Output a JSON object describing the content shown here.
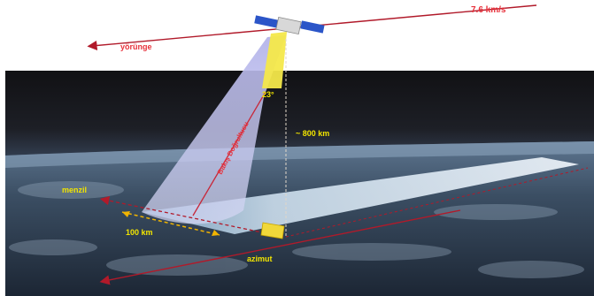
{
  "labels": {
    "velocity": "7.6 km/s",
    "orbit": "yörünge",
    "angle": "23°",
    "look_direction": "Bakış Doğrultusu",
    "altitude": "~ 800 km",
    "range": "menzil",
    "swath": "100 km",
    "azimuth": "azimut"
  },
  "colors": {
    "orbit_line": "#b11a2a",
    "label_red": "#e8323c",
    "label_yellow": "#f2e500",
    "beam_cone": "#c8c8f0",
    "sensor": "#f4e84a",
    "earth_dark": "#1e2a3a",
    "sky": "#1a1a20"
  }
}
